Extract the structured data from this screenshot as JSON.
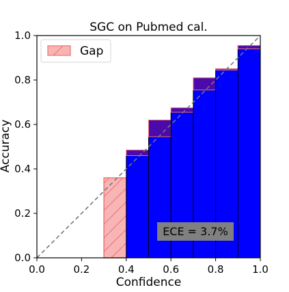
{
  "chart_data": {
    "type": "bar",
    "title": "SGC on Pubmed cal.",
    "xlabel": "Confidence",
    "ylabel": "Accuracy",
    "xlim": [
      0.0,
      1.0
    ],
    "ylim": [
      0.0,
      1.0
    ],
    "x_ticks": [
      "0.0",
      "0.2",
      "0.4",
      "0.6",
      "0.8",
      "1.0"
    ],
    "y_ticks": [
      "0.0",
      "0.2",
      "0.4",
      "0.6",
      "0.8",
      "1.0"
    ],
    "bin_width": 0.1,
    "bins": [
      {
        "x": 0.3,
        "accuracy": 0.0,
        "confidence": 0.36
      },
      {
        "x": 0.4,
        "accuracy": 0.46,
        "confidence": 0.485
      },
      {
        "x": 0.5,
        "accuracy": 0.545,
        "confidence": 0.62
      },
      {
        "x": 0.6,
        "accuracy": 0.655,
        "confidence": 0.675
      },
      {
        "x": 0.7,
        "accuracy": 0.755,
        "confidence": 0.81
      },
      {
        "x": 0.8,
        "accuracy": 0.85,
        "confidence": 0.845
      },
      {
        "x": 0.9,
        "accuracy": 0.955,
        "confidence": 0.94
      }
    ],
    "legend": {
      "entries": [
        "Gap"
      ],
      "position": "top-left"
    },
    "annotation": "ECE = 3.7%",
    "grid": false,
    "diagonal_reference": true,
    "colors": {
      "accuracy_bar": "#0000ff",
      "gap_fill": "#f8b5b5",
      "gap_edge": "#ef6f6f",
      "overlap": "#4b0aa9",
      "annotation_box": "#808080"
    }
  }
}
